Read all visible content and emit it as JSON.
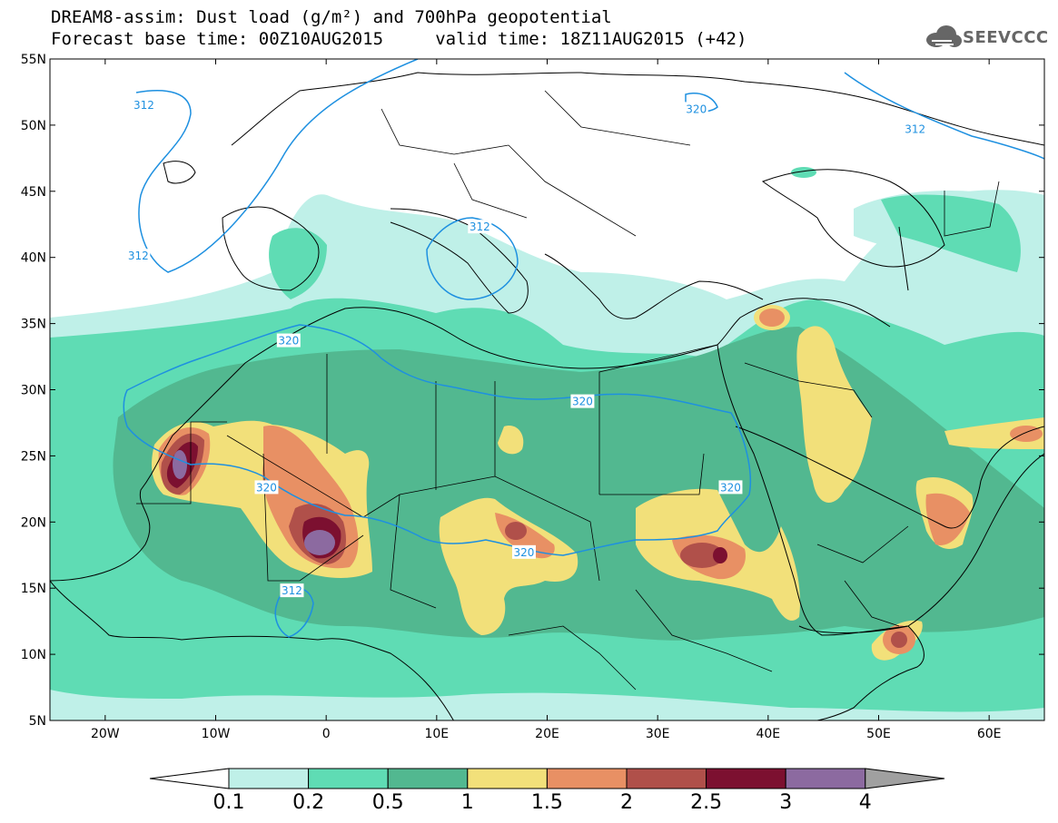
{
  "header": {
    "title_line1": "DREAM8-assim: Dust load (g/m²) and 700hPa geopotential",
    "title_line2": "Forecast base time: 00Z10AUG2015     valid time: 18Z11AUG2015 (+42)",
    "logo_text": "SEEVCCC",
    "logo_icon": "cloud-icon"
  },
  "map": {
    "lon_range": [
      -25,
      65
    ],
    "lat_range": [
      5,
      55
    ],
    "lat_ticks": [
      {
        "value": 55,
        "label": "55N"
      },
      {
        "value": 50,
        "label": "50N"
      },
      {
        "value": 45,
        "label": "45N"
      },
      {
        "value": 40,
        "label": "40N"
      },
      {
        "value": 35,
        "label": "35N"
      },
      {
        "value": 30,
        "label": "30N"
      },
      {
        "value": 25,
        "label": "25N"
      },
      {
        "value": 20,
        "label": "20N"
      },
      {
        "value": 15,
        "label": "15N"
      },
      {
        "value": 10,
        "label": "10N"
      },
      {
        "value": 5,
        "label": "5N"
      }
    ],
    "lon_ticks": [
      {
        "value": -20,
        "label": "20W"
      },
      {
        "value": -10,
        "label": "10W"
      },
      {
        "value": 0,
        "label": "0"
      },
      {
        "value": 10,
        "label": "10E"
      },
      {
        "value": 20,
        "label": "20E"
      },
      {
        "value": 30,
        "label": "30E"
      },
      {
        "value": 40,
        "label": "40E"
      },
      {
        "value": 50,
        "label": "50E"
      },
      {
        "value": 60,
        "label": "60E"
      }
    ],
    "geopotential_labels": [
      {
        "text": "312",
        "lon": -16.5,
        "lat": 51.5
      },
      {
        "text": "312",
        "lon": -17,
        "lat": 40.1
      },
      {
        "text": "320",
        "lon": 33.5,
        "lat": 51.2
      },
      {
        "text": "312",
        "lon": 53.3,
        "lat": 49.7
      },
      {
        "text": "312",
        "lon": 13.9,
        "lat": 42.3
      },
      {
        "text": "320",
        "lon": -3.4,
        "lat": 33.7
      },
      {
        "text": "320",
        "lon": 23.2,
        "lat": 29.1
      },
      {
        "text": "320",
        "lon": -5.4,
        "lat": 22.6
      },
      {
        "text": "320",
        "lon": 36.6,
        "lat": 22.6
      },
      {
        "text": "320",
        "lon": 17.9,
        "lat": 17.7
      },
      {
        "text": "312",
        "lon": -3.1,
        "lat": 14.8
      }
    ]
  },
  "colorbar": {
    "labels": [
      "0.1",
      "0.2",
      "0.5",
      "1",
      "1.5",
      "2",
      "2.5",
      "3",
      "4"
    ],
    "colors": [
      "#ffffff",
      "#bff0e8",
      "#5fdcb4",
      "#52b890",
      "#f2e07a",
      "#e89064",
      "#b0504a",
      "#7c1030",
      "#8c6aa0",
      "#a0a0a0"
    ]
  },
  "colors": {
    "contour": "#1e90e0",
    "coast": "#000000",
    "dust_level1": "#bff0e8",
    "dust_level2": "#5fdcb4",
    "dust_level3": "#52b890",
    "dust_level4": "#f2e07a",
    "dust_level5": "#e89064",
    "dust_level6": "#b0504a",
    "dust_level7": "#7c1030",
    "dust_level8": "#8c6aa0"
  }
}
